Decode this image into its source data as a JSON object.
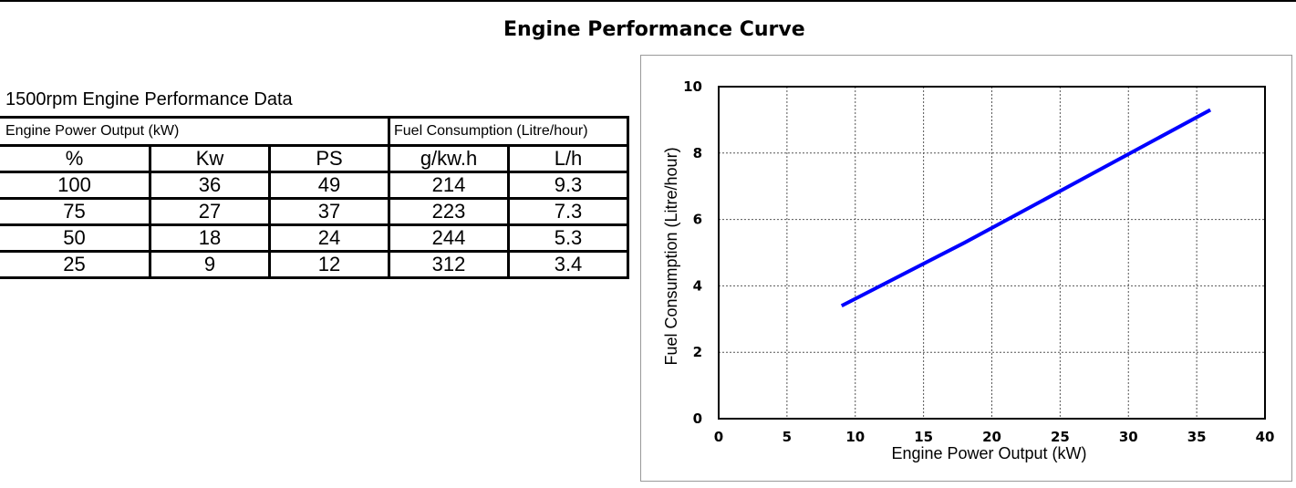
{
  "page_title": "Engine Performance Curve",
  "table": {
    "caption": "1500rpm Engine Performance Data",
    "group_headers": [
      "Engine Power Output (kW)",
      "Fuel Consumption (Litre/hour)"
    ],
    "columns": [
      "%",
      "Kw",
      "PS",
      "g/kw.h",
      "L/h"
    ],
    "rows": [
      [
        "100",
        "36",
        "49",
        "214",
        "9.3"
      ],
      [
        "75",
        "27",
        "37",
        "223",
        "7.3"
      ],
      [
        "50",
        "18",
        "24",
        "244",
        "5.3"
      ],
      [
        "25",
        "9",
        "12",
        "312",
        "3.4"
      ]
    ]
  },
  "chart_data": {
    "type": "line",
    "title": "",
    "xlabel": "Engine Power Output (kW)",
    "ylabel": "Fuel Consumption (Litre/hour)",
    "xlim": [
      0,
      40
    ],
    "ylim": [
      0,
      10
    ],
    "x_ticks": [
      "0",
      "5",
      "10",
      "15",
      "20",
      "25",
      "30",
      "35",
      "40"
    ],
    "y_ticks": [
      "0",
      "2",
      "4",
      "6",
      "8",
      "10"
    ],
    "grid": true,
    "series": [
      {
        "color": "#0000ff",
        "x": [
          9,
          18,
          27,
          36
        ],
        "y": [
          3.4,
          5.3,
          7.3,
          9.3
        ]
      }
    ]
  }
}
